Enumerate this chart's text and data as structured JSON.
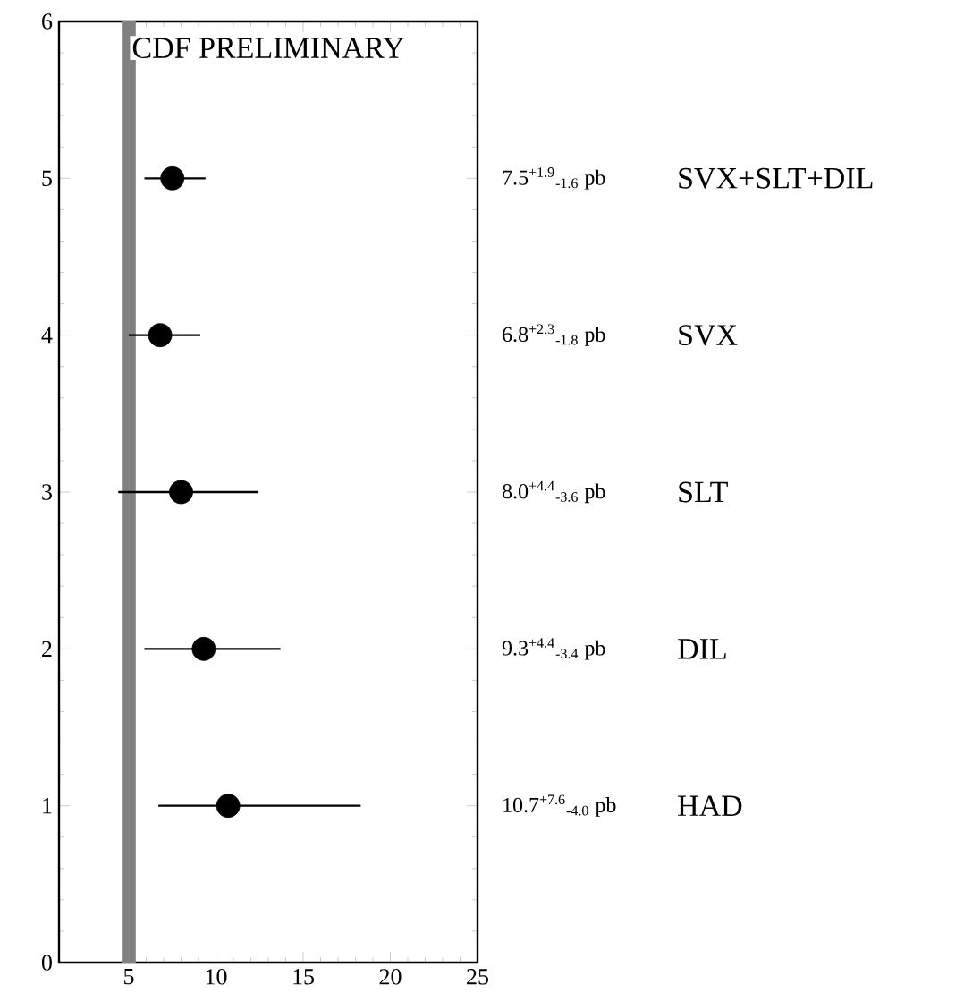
{
  "chart_data": {
    "type": "scatter",
    "title": "CDF PRELIMINARY",
    "xlim": [
      1,
      25
    ],
    "ylim": [
      0,
      6
    ],
    "xticks": [
      5,
      10,
      15,
      20,
      25
    ],
    "yticks": [
      0,
      1,
      2,
      3,
      4,
      5,
      6
    ],
    "marker": "circle",
    "grid": false,
    "bands": [
      {
        "axis": "x",
        "from": 4.6,
        "to": 5.4,
        "color": "#808080"
      }
    ],
    "annotations": [
      "7.5$^{+1.9}$$_{-1.6}$ pb",
      "6.8$^{+2.3}$$_{-1.8}$ pb",
      "8.0$^{+4.4}$$_{-3.6}$ pb",
      "9.3$^{+4.4}$$_{-3.4}$ pb",
      "10.7$^{+7.6}$$_{-4.0}$ pb"
    ],
    "series": [
      {
        "name": "SVX+SLT+DIL",
        "color": "#000000",
        "x": [
          7.5
        ],
        "values": [
          5
        ],
        "xerrors": [
          [
            5.9,
            9.4
          ]
        ]
      },
      {
        "name": "SVX",
        "color": "#000000",
        "x": [
          6.8
        ],
        "values": [
          4
        ],
        "xerrors": [
          [
            5.0,
            9.1
          ]
        ]
      },
      {
        "name": "SLT",
        "color": "#000000",
        "x": [
          8.0
        ],
        "values": [
          3
        ],
        "xerrors": [
          [
            4.4,
            12.4
          ]
        ]
      },
      {
        "name": "DIL",
        "color": "#000000",
        "x": [
          9.3
        ],
        "values": [
          2
        ],
        "xerrors": [
          [
            5.9,
            13.7
          ]
        ]
      },
      {
        "name": "HAD",
        "color": "#000000",
        "x": [
          10.7
        ],
        "values": [
          1
        ],
        "xerrors": [
          [
            6.7,
            18.3
          ]
        ]
      }
    ]
  }
}
